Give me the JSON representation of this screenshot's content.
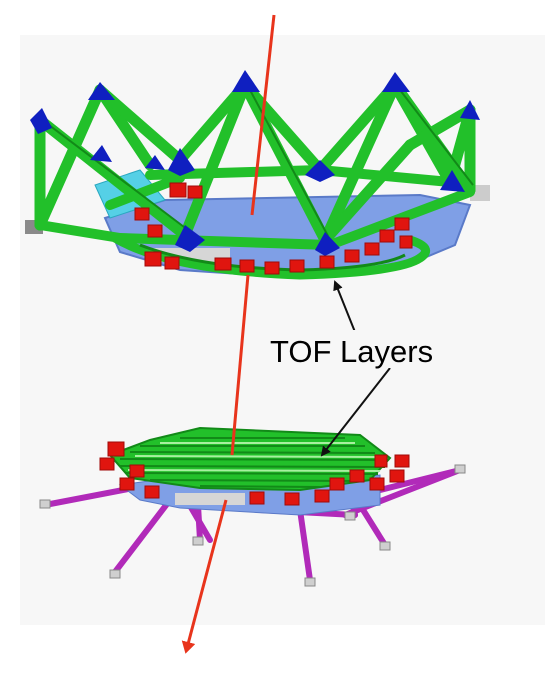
{
  "figure": {
    "label": "TOF Layers",
    "colors": {
      "background": "#ffffff",
      "panel": "#f7f7f7",
      "frame_green": "#22c02a",
      "frame_green_dark": "#128a18",
      "node_blue": "#0f1fc0",
      "plate_blue": "#7f9fe6",
      "plate_cyan": "#55d0e6",
      "pmt_red": "#e0150f",
      "pmt_red_dark": "#a00a08",
      "grey": "#c9c9c9",
      "strut_purple": "#b12ab9",
      "track_red": "#e8341c",
      "arrow_black": "#111111"
    }
  }
}
